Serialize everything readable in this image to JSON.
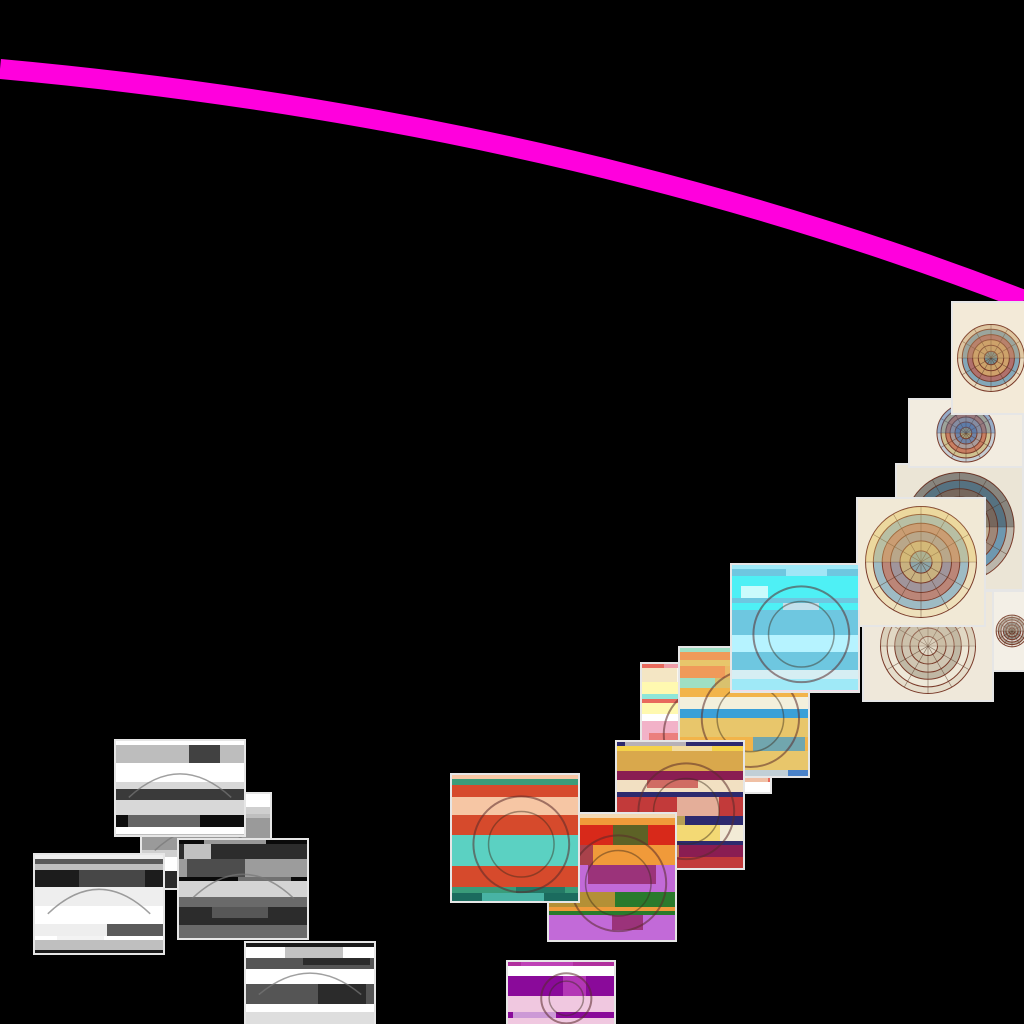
{
  "view": {
    "background": "#000000",
    "arc_color": "#ff00dd",
    "frame_color": "#e6e6e6"
  },
  "thumbnails": [
    {
      "id": "t01",
      "style": "astro",
      "palette": [
        "#f3ead8",
        "#c9a46a",
        "#2f7fb5",
        "#d6452f",
        "#e9c96a"
      ]
    },
    {
      "id": "t02",
      "style": "astro",
      "palette": [
        "#f2ece0",
        "#3f6fb0",
        "#d7b85a",
        "#c2473a",
        "#8fb5cc"
      ]
    },
    {
      "id": "t03",
      "style": "astro",
      "palette": [
        "#ebe5d6",
        "#2c2c2c",
        "#2f7fb5",
        "#c77a4a",
        "#d8c9a0"
      ]
    },
    {
      "id": "t04",
      "style": "astro",
      "palette": [
        "#f1e9d6",
        "#e9c96a",
        "#5c9ccc",
        "#d35b3a",
        "#8aa3b8"
      ]
    },
    {
      "id": "t05",
      "style": "astro",
      "palette": [
        "#f3efe6",
        "#bdb4a2",
        "#8c8273",
        "#ffffff",
        "#5a5448"
      ]
    },
    {
      "id": "t06",
      "style": "astro",
      "palette": [
        "#efe8da",
        "#c9bba0",
        "#f5f0e4",
        "#9a8f7b",
        "#dcd2bf"
      ]
    },
    {
      "id": "t07",
      "style": "glitch",
      "palette": [
        "#f5d9e8",
        "#ffffff",
        "#4ef0f5",
        "#9fe9f7",
        "#d6eef3",
        "#6ec7e0",
        "#b6f3ff"
      ]
    },
    {
      "id": "t08",
      "style": "glitch",
      "palette": [
        "#f3f0dc",
        "#e8c66b",
        "#f09a5a",
        "#4a82c8",
        "#9fdfc4",
        "#f2b44a",
        "#3aa0d8"
      ]
    },
    {
      "id": "t09",
      "style": "glitch",
      "palette": [
        "#f4e6c4",
        "#fff9b0",
        "#8fe6d8",
        "#f2b2c8",
        "#e86a5c",
        "#ffffff"
      ]
    },
    {
      "id": "t10",
      "style": "glitch",
      "palette": [
        "#f2ebd6",
        "#d9a84c",
        "#f4d24a",
        "#c23a3a",
        "#2d2a6e",
        "#8a1d52",
        "#f2e0c2"
      ]
    },
    {
      "id": "t11",
      "style": "glitch",
      "palette": [
        "#f1e2d6",
        "#d64a2c",
        "#3a9c7a",
        "#a9f5ea",
        "#1b6b5e",
        "#f6c6a4",
        "#5bd1c2"
      ]
    },
    {
      "id": "t12",
      "style": "glitch",
      "palette": [
        "#f09a3a",
        "#d8291a",
        "#2a7a2c",
        "#1d2a6e",
        "#8a1d52",
        "#c26ad8",
        "#f3d9b4"
      ]
    },
    {
      "id": "t13",
      "style": "glitch",
      "palette": [
        "#ffffff",
        "#f0c8e0",
        "#c44ac0",
        "#8a0a9a",
        "#e8d6f0",
        "#b0309e"
      ]
    },
    {
      "id": "t14",
      "style": "gray",
      "palette": [
        "#ffffff",
        "#d8d8d8",
        "#8a8a8a",
        "#3a3a3a",
        "#0d0d0d",
        "#bdbdbd"
      ]
    },
    {
      "id": "t15",
      "style": "gray",
      "palette": [
        "#ffffff",
        "#e4e4e4",
        "#9a9a9a",
        "#2a2a2a",
        "#cfcfcf"
      ]
    },
    {
      "id": "t16",
      "style": "gray",
      "palette": [
        "#ffffff",
        "#0a0a0a",
        "#6a6a6a",
        "#d4d4d4",
        "#2c2c2c",
        "#9c9c9c"
      ]
    },
    {
      "id": "t17",
      "style": "gray",
      "palette": [
        "#ffffff",
        "#eeeeee",
        "#bfbfbf",
        "#5a5a5a",
        "#1c1c1c"
      ]
    },
    {
      "id": "t18",
      "style": "gray",
      "palette": [
        "#ffffff",
        "#a8a8a8",
        "#1a1a1a",
        "#dedede",
        "#555555"
      ]
    }
  ]
}
